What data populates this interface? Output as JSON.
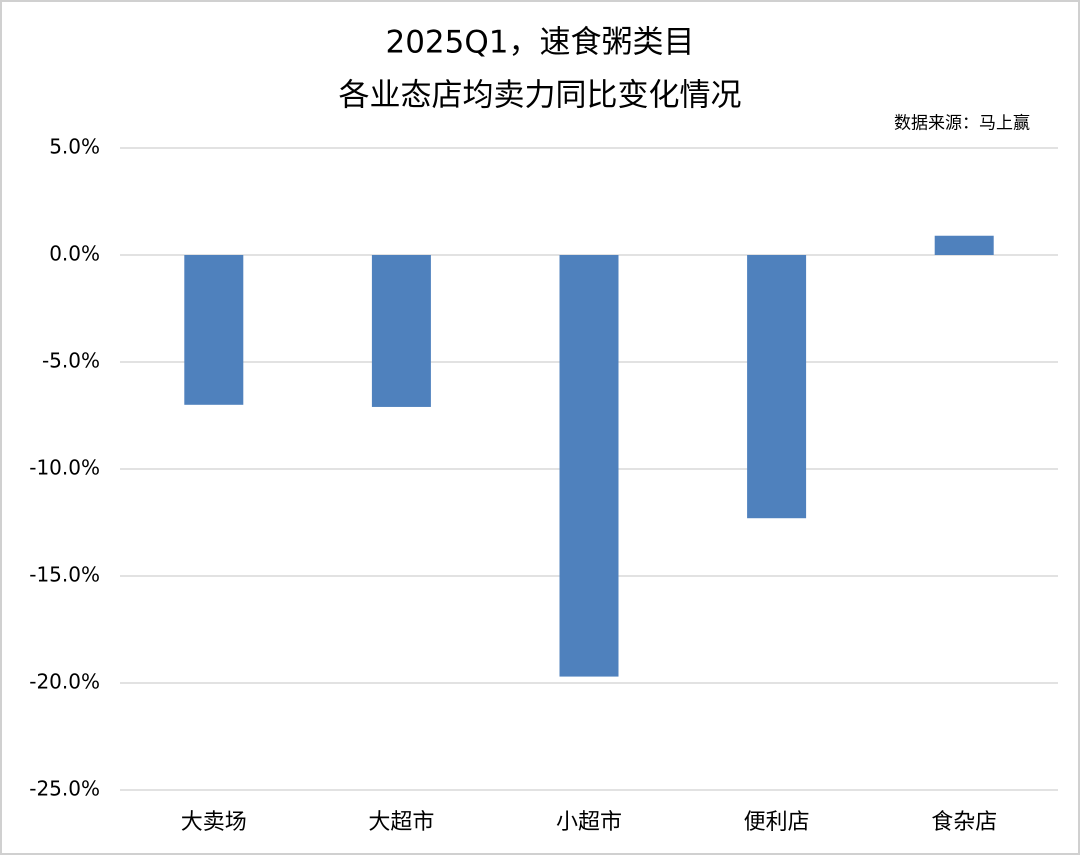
{
  "chart_data": {
    "type": "bar",
    "title": [
      "2025Q1，速食粥类目",
      "各业态店均卖力同比变化情况"
    ],
    "source": "数据来源：马上赢",
    "categories": [
      "大卖场",
      "大超市",
      "小超市",
      "便利店",
      "食杂店"
    ],
    "values": [
      -7.0,
      -7.1,
      -19.7,
      -12.3,
      0.9
    ],
    "color": "#4f81bd",
    "ylim": [
      -25,
      5
    ],
    "yticks": [
      {
        "value": 5,
        "label": "5.0%"
      },
      {
        "value": 0,
        "label": "0.0%"
      },
      {
        "value": -5,
        "label": "-5.0%"
      },
      {
        "value": -10,
        "label": "-10.0%"
      },
      {
        "value": -15,
        "label": "-15.0%"
      },
      {
        "value": -20,
        "label": "-20.0%"
      },
      {
        "value": -25,
        "label": "-25.0%"
      }
    ],
    "grid": true
  }
}
